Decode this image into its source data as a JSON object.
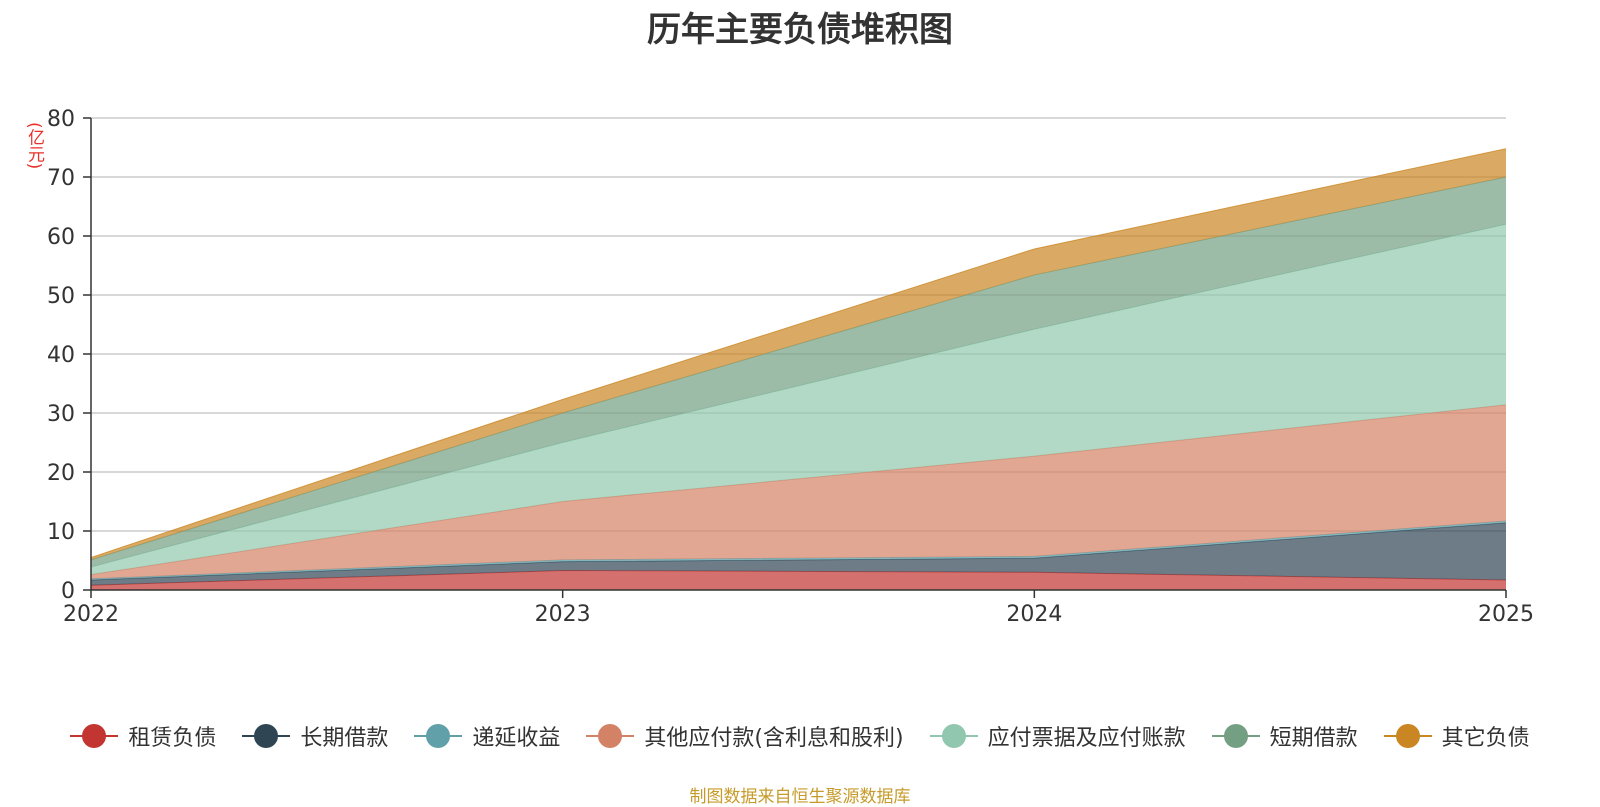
{
  "chart_data": {
    "type": "area",
    "title": "历年主要负债堆积图",
    "ylabel": "(亿元)",
    "xlabel": "",
    "x": [
      "2022",
      "2023",
      "2024",
      "2025"
    ],
    "ylim": [
      0,
      80
    ],
    "yticks": [
      "0",
      "10",
      "20",
      "30",
      "40",
      "50",
      "60",
      "70",
      "80"
    ],
    "stacked": true,
    "series": [
      {
        "name": "租赁负债",
        "values": [
          0.8,
          3.3,
          3.0,
          1.7
        ],
        "color": "#c23531"
      },
      {
        "name": "长期借款",
        "values": [
          0.9,
          1.5,
          2.4,
          9.7
        ],
        "color": "#2f4554"
      },
      {
        "name": "递延收益",
        "values": [
          0.2,
          0.3,
          0.3,
          0.3
        ],
        "color": "#61a0a8"
      },
      {
        "name": "其他应付款(含利息和股利)",
        "values": [
          0.7,
          9.9,
          17.0,
          19.7
        ],
        "color": "#d48265"
      },
      {
        "name": "应付票据及应付账款",
        "values": [
          1.3,
          10.0,
          21.5,
          30.6
        ],
        "color": "#91c7ae"
      },
      {
        "name": "短期借款",
        "values": [
          1.2,
          5.0,
          9.2,
          8.0
        ],
        "color": "#749f83"
      },
      {
        "name": "其它负债",
        "values": [
          0.4,
          2.3,
          4.4,
          4.8
        ],
        "color": "#ca8622"
      }
    ]
  },
  "source_note": "制图数据来自恒生聚源数据库"
}
